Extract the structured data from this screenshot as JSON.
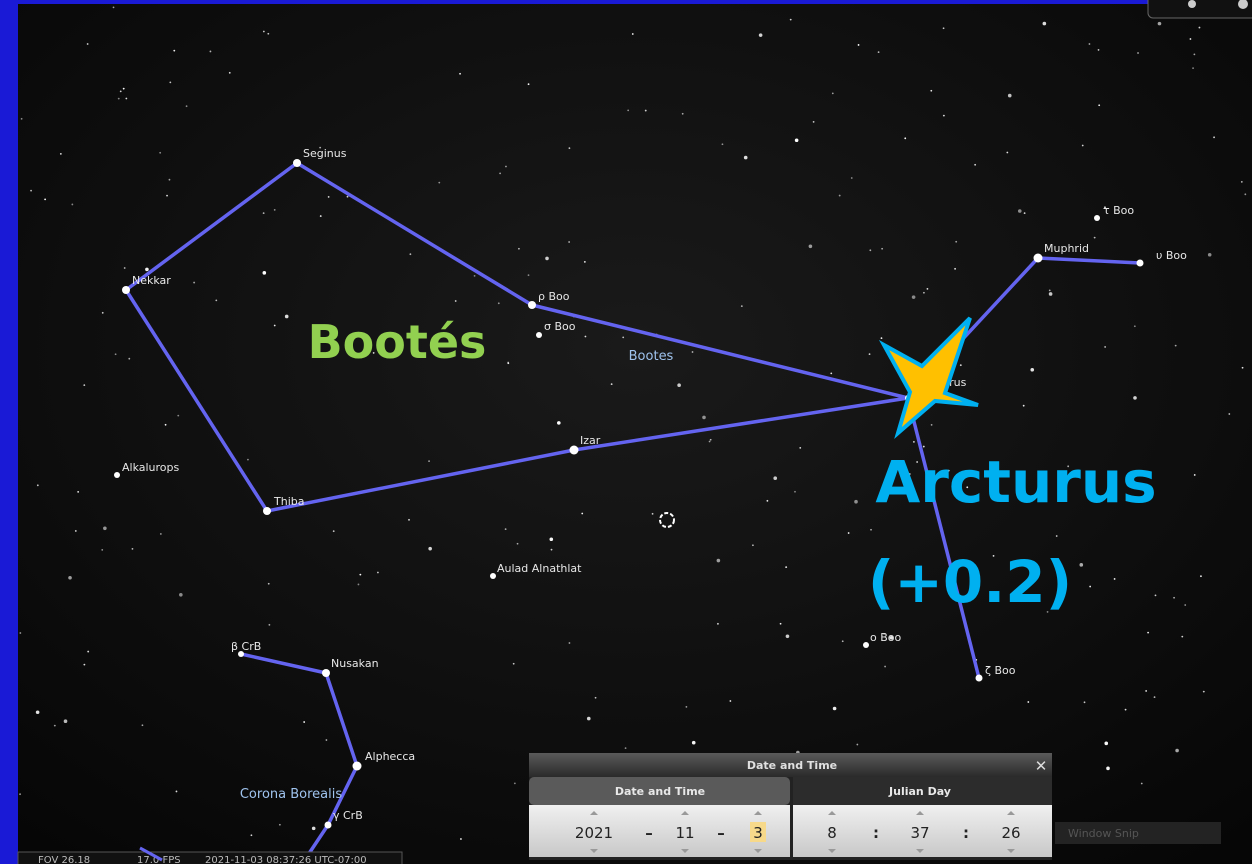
{
  "sky": {
    "stars": [
      "Seginus",
      "Nekkar",
      "Thiba",
      "Izar",
      "ρ Boo",
      "σ Boo",
      "Arcturus",
      "Muphrid",
      "υ Boo",
      "τ Boo",
      "ζ Boo",
      "ο Boo",
      "Alkalurops",
      "Aulad Alnathlat",
      "β CrB",
      "Nusakan",
      "Alphecca",
      "γ CrB"
    ],
    "constellations": [
      "Bootes",
      "Corona Borealis"
    ]
  },
  "overlay": {
    "constellation": "Bootés",
    "star": "Arcturus",
    "magnitude": "(+0.2)"
  },
  "dialog": {
    "title": "Date and Time",
    "tabs": [
      "Date and Time",
      "Julian Day"
    ],
    "date": [
      "2021",
      "–",
      "11",
      "–",
      "3"
    ],
    "time": [
      "8",
      ":",
      "37",
      ":",
      "26"
    ]
  },
  "status": {
    "fov": "FOV 26.18",
    "fps": "17.0 FPS",
    "datetime": "2021-11-03 08:37:26 UTC-07:00"
  },
  "snip": "Window Snip"
}
